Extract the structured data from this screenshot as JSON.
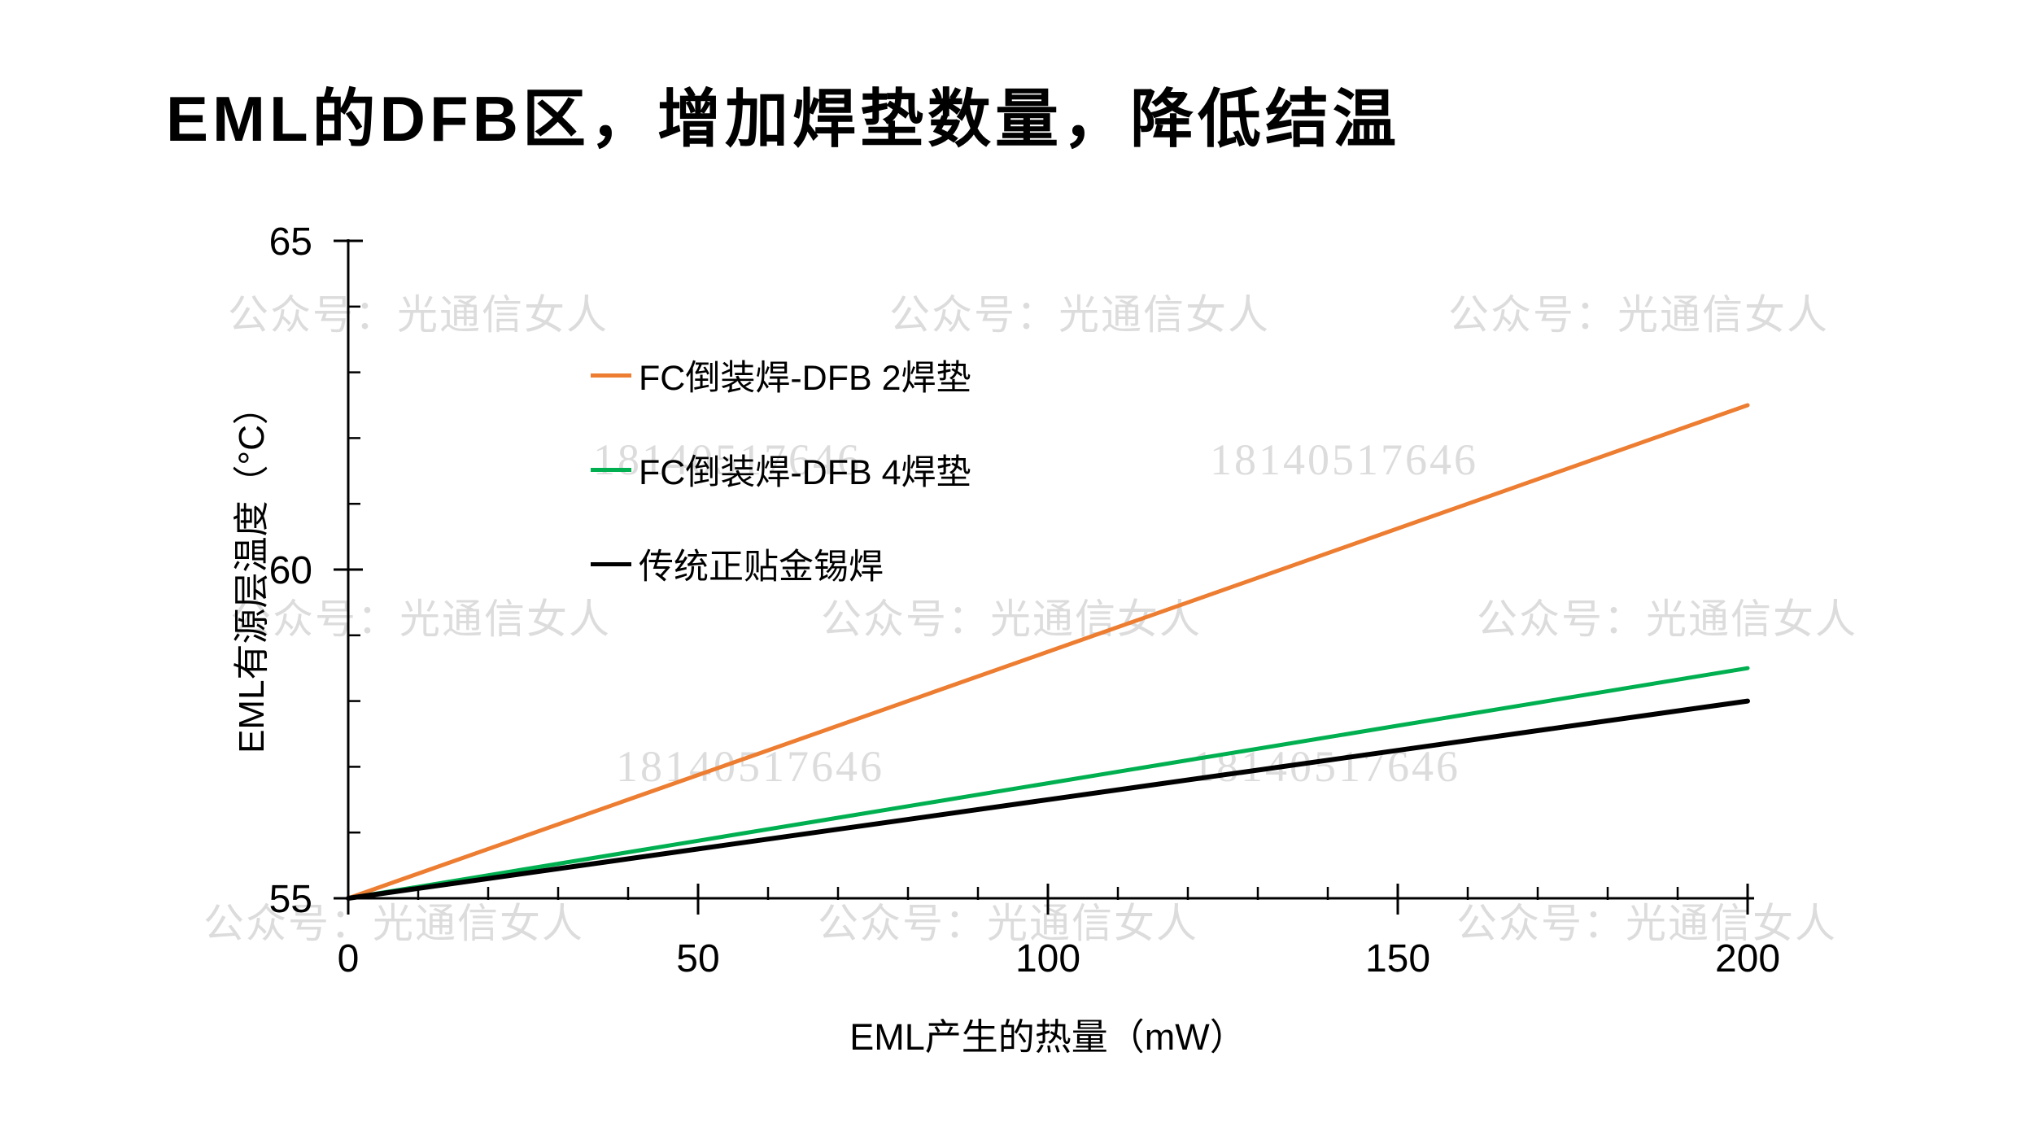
{
  "title": "EML的DFB区，增加焊垫数量，降低结温",
  "watermarks": {
    "brand": "公众号：光通信女人",
    "phone": "18140517646"
  },
  "chart_data": {
    "type": "line",
    "title": "EML的DFB区，增加焊垫数量，降低结温",
    "xlabel": "EML产生的热量（mW）",
    "ylabel": "EML有源层温度（°C）",
    "xlim": [
      0,
      200
    ],
    "ylim": [
      55,
      65
    ],
    "x_major_ticks": [
      0,
      50,
      100,
      150,
      200
    ],
    "x_minor_step": 10,
    "y_major_ticks": [
      55,
      60,
      65
    ],
    "y_minor_step": 1,
    "grid": false,
    "legend_position": "upper left inside",
    "x": [
      0,
      50,
      100,
      150,
      200
    ],
    "series": [
      {
        "name": "FC倒装焊-DFB 2焊垫",
        "color": "#ED7D31",
        "line_width": 5,
        "values": [
          55,
          56.875,
          58.75,
          60.625,
          62.5
        ]
      },
      {
        "name": "FC倒装焊-DFB 4焊垫",
        "color": "#00B050",
        "line_width": 5,
        "values": [
          55,
          55.875,
          56.75,
          57.625,
          58.5
        ]
      },
      {
        "name": "传统正贴金锡焊",
        "color": "#000000",
        "line_width": 6,
        "values": [
          55,
          55.75,
          56.5,
          57.25,
          58
        ]
      }
    ]
  }
}
